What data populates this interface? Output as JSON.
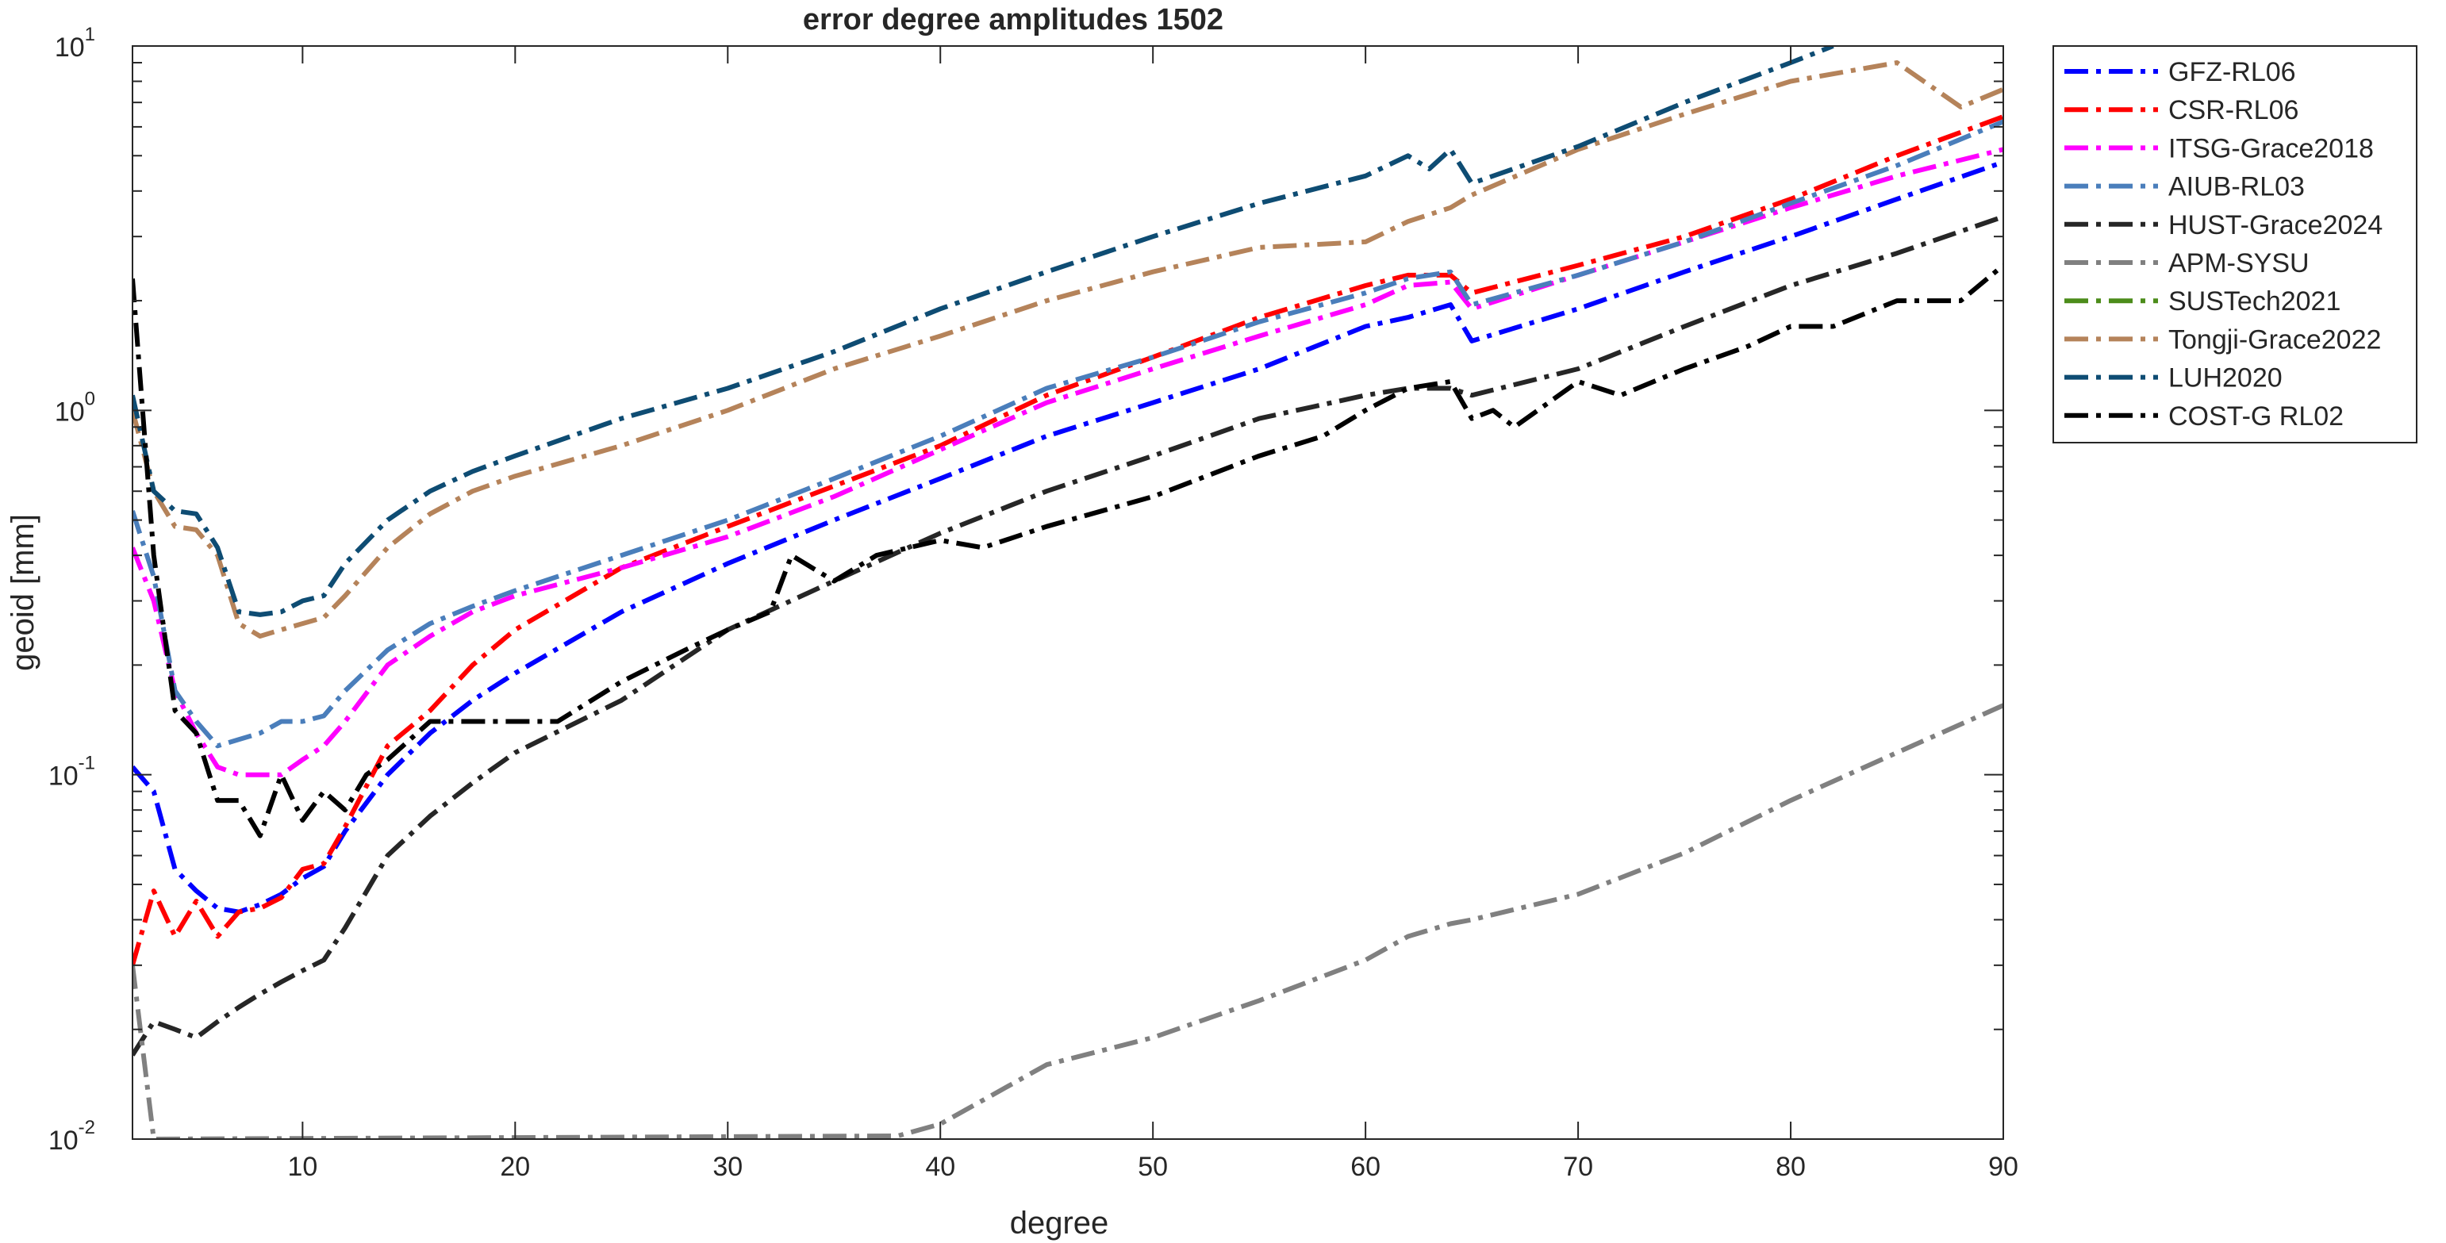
{
  "chart_data": {
    "type": "line",
    "title": "error degree amplitudes 1502",
    "xlabel": "degree",
    "ylabel": "geoid [mm]",
    "xlim": [
      2,
      90
    ],
    "ylim": [
      0.01,
      10
    ],
    "yscale": "log",
    "grid": false,
    "legend_position": "outside-top-right",
    "x_ticks": [
      10,
      20,
      30,
      40,
      50,
      60,
      70,
      80,
      90
    ],
    "y_ticks": [
      {
        "value": 0.01,
        "base": "10",
        "exp": "-2"
      },
      {
        "value": 0.1,
        "base": "10",
        "exp": "-1"
      },
      {
        "value": 1,
        "base": "10",
        "exp": "0"
      },
      {
        "value": 10,
        "base": "10",
        "exp": "1"
      }
    ],
    "series": [
      {
        "name": "GFZ-RL06",
        "color": "#0000FF",
        "x": [
          2,
          3,
          4,
          5,
          6,
          7,
          8,
          9,
          10,
          11,
          12,
          14,
          16,
          18,
          20,
          25,
          30,
          35,
          40,
          45,
          50,
          55,
          60,
          62,
          64,
          65,
          70,
          75,
          80,
          85,
          90
        ],
        "y": [
          0.105,
          0.09,
          0.055,
          0.048,
          0.043,
          0.042,
          0.044,
          0.047,
          0.052,
          0.056,
          0.07,
          0.1,
          0.13,
          0.16,
          0.19,
          0.28,
          0.38,
          0.5,
          0.65,
          0.85,
          1.05,
          1.3,
          1.7,
          1.8,
          1.95,
          1.55,
          1.9,
          2.4,
          3.0,
          3.8,
          4.8
        ]
      },
      {
        "name": "CSR-RL06",
        "color": "#FF0000",
        "x": [
          2,
          3,
          4,
          5,
          6,
          7,
          8,
          9,
          10,
          11,
          12,
          14,
          16,
          18,
          20,
          25,
          30,
          35,
          40,
          45,
          50,
          55,
          60,
          62,
          64,
          65,
          70,
          75,
          80,
          85,
          90
        ],
        "y": [
          0.03,
          0.048,
          0.036,
          0.045,
          0.036,
          0.042,
          0.043,
          0.046,
          0.055,
          0.057,
          0.072,
          0.12,
          0.15,
          0.2,
          0.25,
          0.37,
          0.48,
          0.62,
          0.8,
          1.1,
          1.4,
          1.8,
          2.2,
          2.35,
          2.35,
          2.1,
          2.5,
          3.0,
          3.8,
          5.0,
          6.4
        ]
      },
      {
        "name": "ITSG-Grace2018",
        "color": "#FF00FF",
        "x": [
          2,
          3,
          4,
          5,
          6,
          7,
          8,
          9,
          10,
          11,
          12,
          14,
          16,
          18,
          20,
          25,
          30,
          35,
          40,
          45,
          50,
          55,
          60,
          62,
          64,
          65,
          70,
          75,
          80,
          85,
          90
        ],
        "y": [
          0.42,
          0.3,
          0.17,
          0.13,
          0.105,
          0.1,
          0.1,
          0.1,
          0.11,
          0.12,
          0.14,
          0.2,
          0.24,
          0.28,
          0.31,
          0.37,
          0.45,
          0.58,
          0.78,
          1.05,
          1.3,
          1.6,
          1.95,
          2.2,
          2.25,
          1.9,
          2.35,
          2.9,
          3.6,
          4.4,
          5.2
        ]
      },
      {
        "name": "AIUB-RL03",
        "color": "#4A7EBB",
        "x": [
          2,
          3,
          4,
          5,
          6,
          7,
          8,
          9,
          10,
          11,
          12,
          14,
          16,
          18,
          20,
          25,
          30,
          35,
          40,
          45,
          50,
          55,
          60,
          62,
          64,
          65,
          70,
          75,
          80,
          85,
          90
        ],
        "y": [
          0.53,
          0.35,
          0.17,
          0.14,
          0.12,
          0.125,
          0.13,
          0.14,
          0.14,
          0.145,
          0.17,
          0.22,
          0.26,
          0.29,
          0.32,
          0.4,
          0.5,
          0.65,
          0.85,
          1.15,
          1.4,
          1.75,
          2.1,
          2.3,
          2.4,
          1.95,
          2.35,
          2.9,
          3.7,
          4.7,
          6.2
        ]
      },
      {
        "name": "HUST-Grace2024",
        "color": "#262626",
        "x": [
          2,
          3,
          4,
          5,
          6,
          7,
          8,
          9,
          10,
          11,
          12,
          14,
          16,
          18,
          20,
          25,
          30,
          35,
          40,
          45,
          50,
          55,
          60,
          62,
          64,
          65,
          70,
          75,
          80,
          85,
          90
        ],
        "y": [
          0.017,
          0.021,
          0.02,
          0.019,
          0.021,
          0.023,
          0.025,
          0.027,
          0.029,
          0.031,
          0.038,
          0.06,
          0.077,
          0.095,
          0.115,
          0.16,
          0.25,
          0.34,
          0.46,
          0.6,
          0.75,
          0.95,
          1.1,
          1.15,
          1.15,
          1.1,
          1.3,
          1.7,
          2.2,
          2.7,
          3.4
        ]
      },
      {
        "name": "APM-SYSU",
        "color": "#808080",
        "x": [
          2,
          3,
          38,
          40,
          45,
          50,
          55,
          60,
          62,
          64,
          65,
          70,
          75,
          80,
          85,
          90
        ],
        "y": [
          0.03,
          0.01,
          0.0102,
          0.011,
          0.016,
          0.019,
          0.024,
          0.031,
          0.036,
          0.039,
          0.04,
          0.047,
          0.061,
          0.085,
          0.115,
          0.155
        ]
      },
      {
        "name": "SUSTech2021",
        "color": "#4C8C1A",
        "x": [],
        "y": []
      },
      {
        "name": "Tongji-Grace2022",
        "color": "#B5835A",
        "x": [
          2,
          3,
          4,
          5,
          6,
          7,
          8,
          9,
          10,
          11,
          12,
          14,
          16,
          18,
          20,
          25,
          30,
          35,
          40,
          45,
          50,
          55,
          60,
          62,
          64,
          65,
          70,
          75,
          80,
          85,
          88,
          90
        ],
        "y": [
          1.0,
          0.6,
          0.48,
          0.47,
          0.4,
          0.26,
          0.24,
          0.25,
          0.26,
          0.27,
          0.31,
          0.42,
          0.52,
          0.6,
          0.66,
          0.8,
          1.0,
          1.3,
          1.6,
          2.0,
          2.4,
          2.8,
          2.9,
          3.3,
          3.6,
          3.9,
          5.2,
          6.5,
          8.0,
          9.0,
          6.8,
          7.6
        ]
      },
      {
        "name": "LUH2020",
        "color": "#0E4C73",
        "x": [
          2,
          3,
          4,
          5,
          6,
          7,
          8,
          9,
          10,
          11,
          12,
          14,
          16,
          18,
          20,
          25,
          30,
          35,
          40,
          45,
          50,
          55,
          60,
          62,
          63,
          64,
          65,
          70,
          75,
          80,
          82
        ],
        "y": [
          1.1,
          0.6,
          0.53,
          0.52,
          0.42,
          0.28,
          0.275,
          0.28,
          0.3,
          0.31,
          0.38,
          0.5,
          0.6,
          0.68,
          0.75,
          0.95,
          1.15,
          1.45,
          1.9,
          2.4,
          3.0,
          3.7,
          4.4,
          5.0,
          4.6,
          5.2,
          4.2,
          5.3,
          7.0,
          9.0,
          10.0
        ]
      },
      {
        "name": "COST-G RL02",
        "color": "#000000",
        "x": [
          2,
          3,
          4,
          5,
          6,
          7,
          8,
          9,
          10,
          11,
          12,
          13,
          14,
          16,
          18,
          20,
          22,
          25,
          28,
          30,
          32,
          33,
          35,
          37,
          40,
          42,
          45,
          50,
          55,
          58,
          60,
          62,
          64,
          65,
          66,
          67,
          70,
          72,
          75,
          78,
          80,
          82,
          85,
          88,
          90
        ],
        "y": [
          2.3,
          0.4,
          0.15,
          0.13,
          0.085,
          0.085,
          0.068,
          0.1,
          0.075,
          0.09,
          0.08,
          0.1,
          0.11,
          0.14,
          0.14,
          0.14,
          0.14,
          0.18,
          0.22,
          0.25,
          0.28,
          0.4,
          0.34,
          0.4,
          0.44,
          0.42,
          0.48,
          0.58,
          0.75,
          0.85,
          1.0,
          1.15,
          1.2,
          0.95,
          1.0,
          0.9,
          1.2,
          1.1,
          1.3,
          1.5,
          1.7,
          1.7,
          2.0,
          2.0,
          2.5
        ]
      }
    ]
  }
}
